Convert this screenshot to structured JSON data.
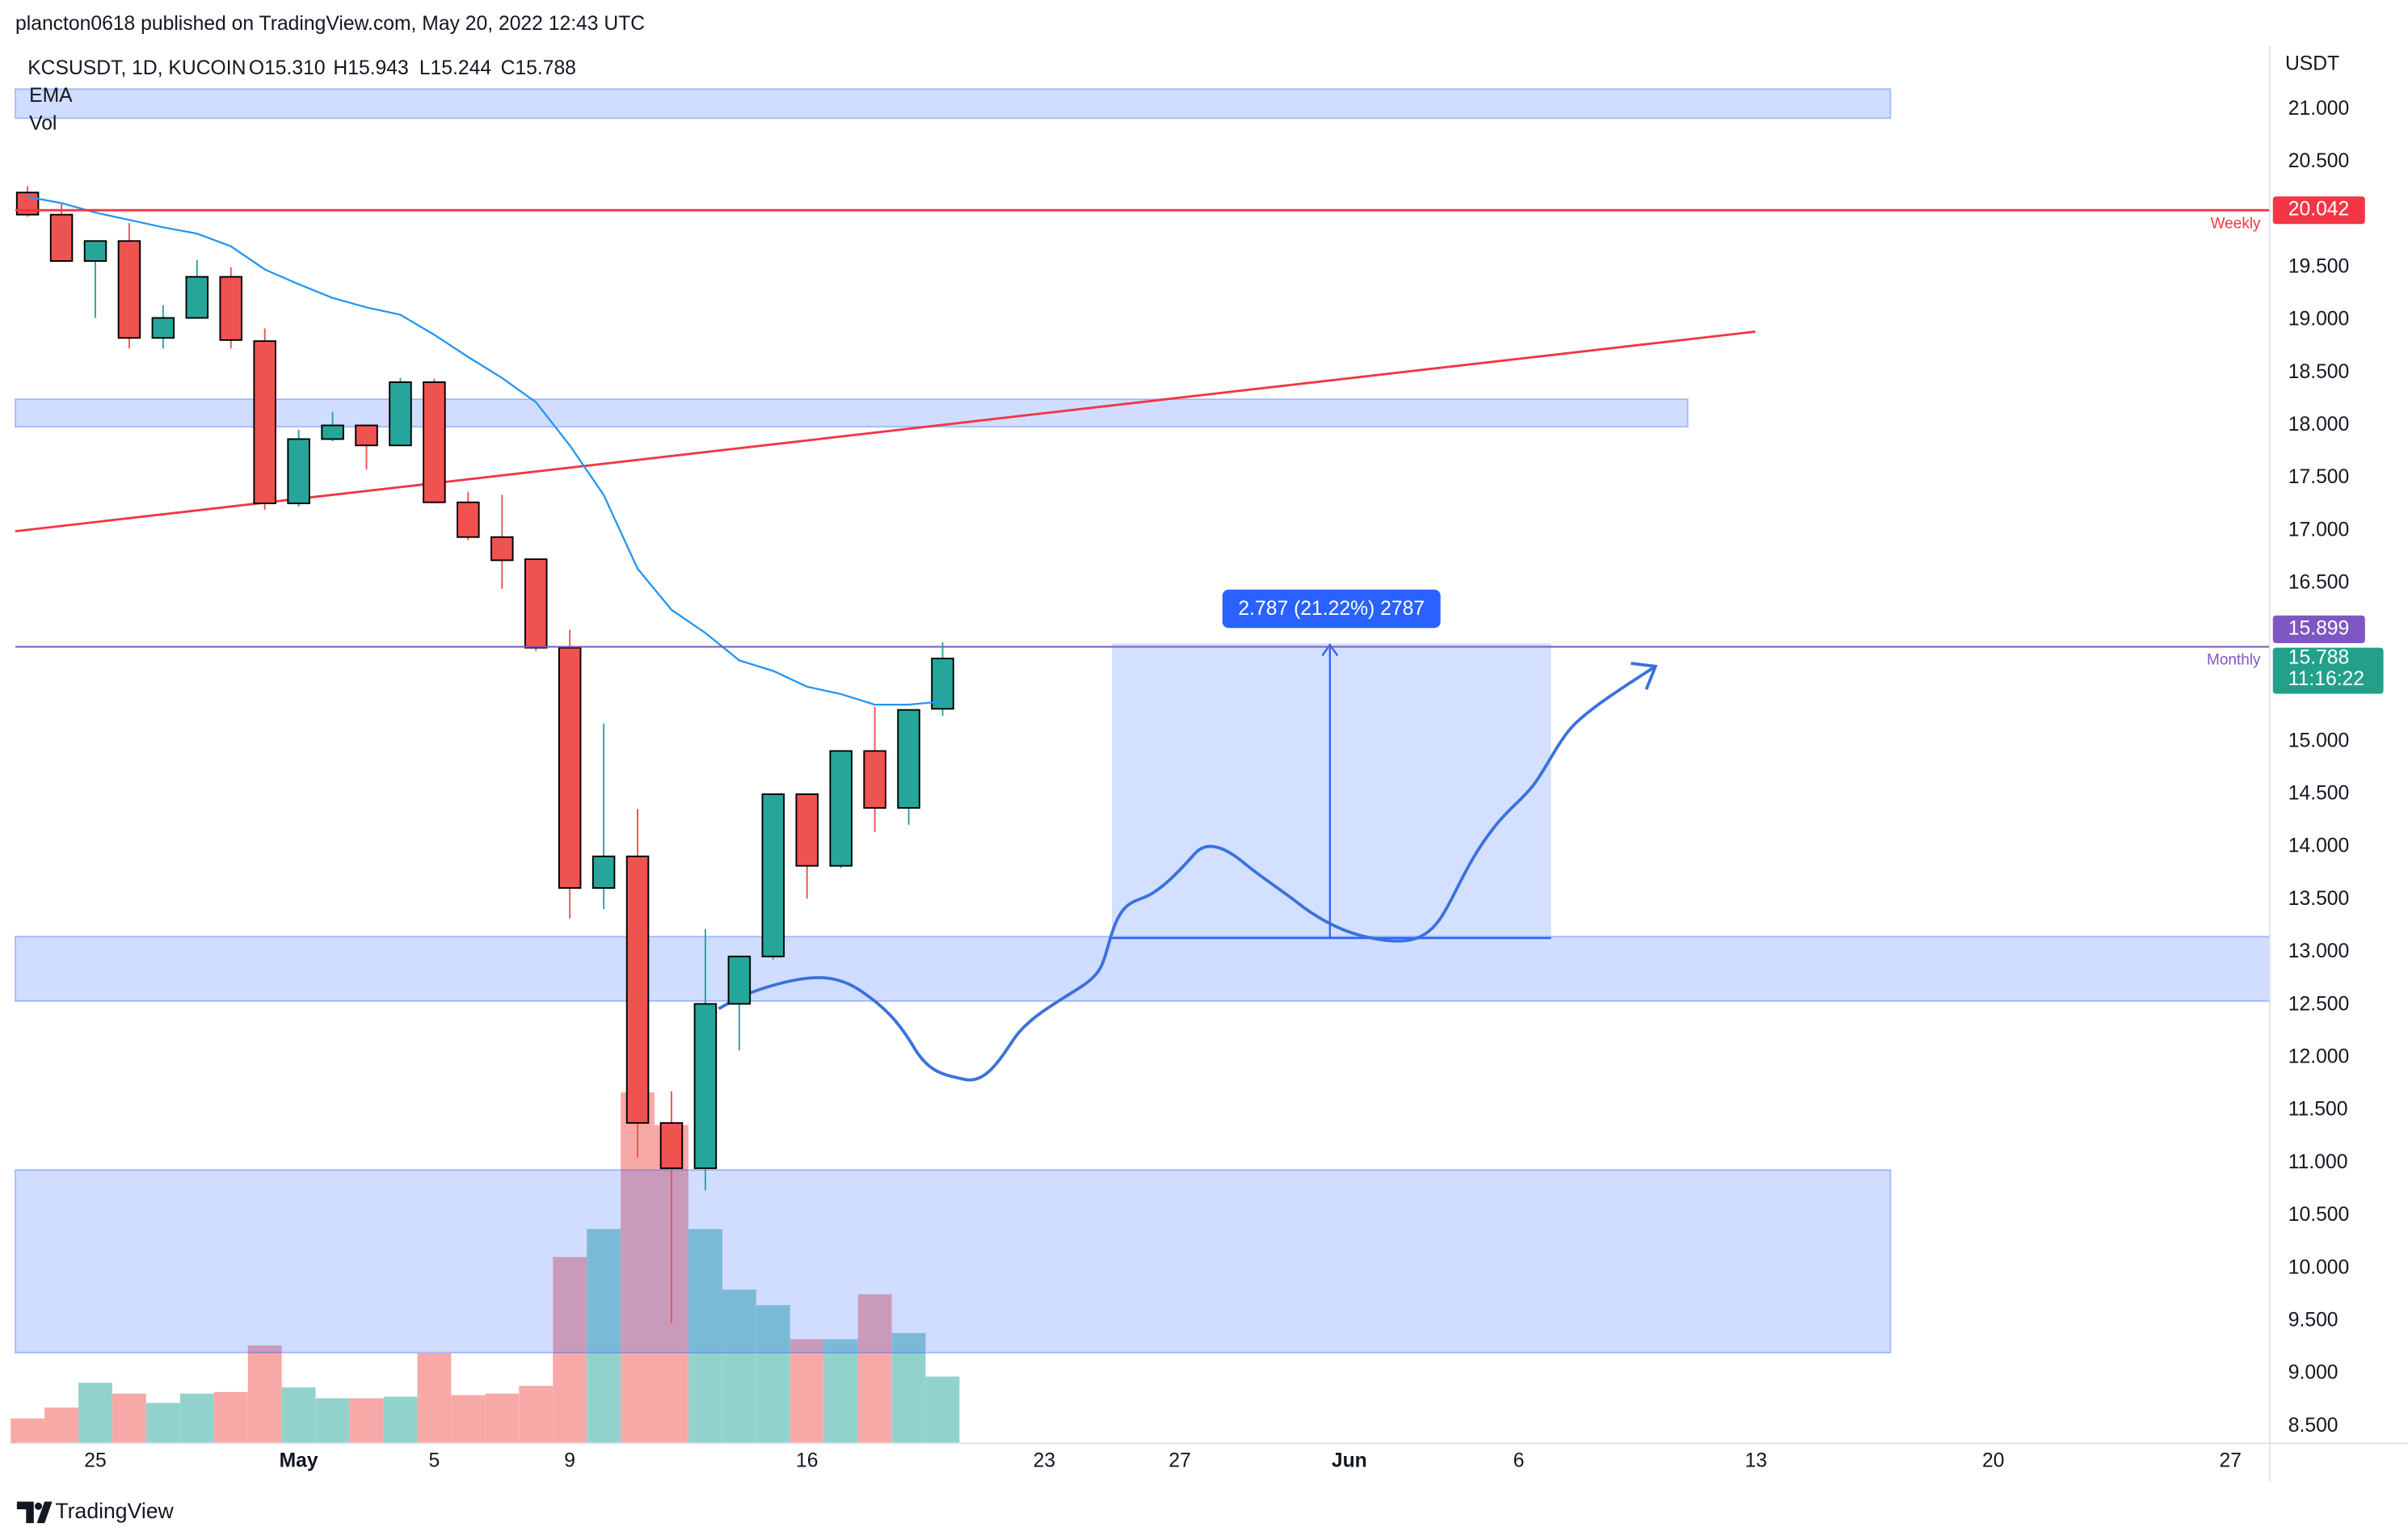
{
  "header": {
    "published": "plancton0618 published on TradingView.com, May 20, 2022 12:43 UTC"
  },
  "chart_data": {
    "type": "candlestick",
    "symbol": "KCSUSDT, 1D, KUCOIN",
    "ohlc_labels": [
      "O15.310",
      "H15.943",
      "L15.244",
      "C15.788"
    ],
    "y_axis_label": "USDT",
    "x": [
      23,
      24,
      25,
      26,
      27,
      28,
      29,
      30,
      31,
      32,
      33,
      34,
      35,
      36,
      37,
      38,
      39,
      40,
      41,
      42,
      43,
      44,
      45,
      46,
      47,
      48,
      49,
      50
    ],
    "open": [
      20.21,
      20.0,
      19.56,
      19.75,
      18.83,
      19.02,
      19.41,
      18.8,
      17.26,
      17.87,
      18.0,
      17.81,
      18.41,
      17.27,
      16.94,
      16.73,
      15.89,
      13.61,
      13.91,
      11.38,
      10.95,
      12.51,
      12.96,
      14.5,
      13.82,
      14.91,
      14.37,
      15.31
    ],
    "high": [
      20.27,
      20.1,
      19.75,
      19.92,
      19.14,
      19.57,
      19.5,
      18.92,
      17.96,
      18.13,
      18.0,
      18.45,
      18.44,
      17.37,
      17.34,
      16.73,
      16.06,
      15.17,
      14.36,
      11.68,
      13.22,
      12.96,
      14.5,
      14.5,
      14.91,
      15.33,
      15.3,
      15.943
    ],
    "low": [
      19.98,
      19.55,
      19.02,
      18.73,
      18.73,
      19.01,
      18.73,
      17.2,
      17.23,
      17.85,
      17.58,
      17.8,
      17.26,
      16.91,
      16.45,
      15.86,
      13.32,
      13.41,
      11.05,
      9.48,
      10.74,
      12.07,
      12.93,
      13.51,
      13.8,
      14.14,
      14.21,
      15.244
    ],
    "close": [
      20.0,
      19.56,
      19.75,
      18.83,
      19.02,
      19.41,
      18.81,
      17.26,
      17.87,
      18.0,
      17.81,
      18.41,
      17.27,
      16.94,
      16.72,
      15.89,
      13.61,
      13.91,
      11.38,
      10.95,
      12.51,
      12.96,
      14.5,
      13.82,
      14.91,
      14.37,
      15.3,
      15.788
    ],
    "up_color": "#26a69a",
    "down_color": "#ef5350",
    "series": [
      {
        "name": "EMA",
        "color": "#2196f3",
        "values": [
          20.17,
          20.11,
          20.02,
          19.95,
          19.88,
          19.82,
          19.7,
          19.48,
          19.34,
          19.21,
          19.12,
          19.05,
          18.86,
          18.65,
          18.45,
          18.22,
          17.81,
          17.34,
          16.64,
          16.25,
          16.03,
          15.77,
          15.67,
          15.52,
          15.45,
          15.35,
          15.35,
          15.38
        ]
      },
      {
        "name": "Vol",
        "values": [
          16,
          23,
          39,
          32,
          26,
          32,
          33,
          63,
          36,
          29,
          29,
          30,
          58,
          31,
          32,
          37,
          120,
          138,
          226,
          205,
          138,
          99,
          89,
          67,
          67,
          96,
          71,
          43
        ]
      }
    ],
    "vlim": [
      0,
      900
    ],
    "xlim": [
      22.64,
      89.16
    ],
    "xticks": [
      25,
      {
        "value": 31,
        "label": "May"
      },
      {
        "value": 35,
        "label": "5"
      },
      {
        "value": 39,
        "label": "9"
      },
      {
        "value": 46,
        "label": "16"
      },
      {
        "value": 53,
        "label": "23"
      },
      {
        "value": 57,
        "label": "27"
      },
      {
        "value": 62,
        "label": "Jun"
      },
      {
        "value": 67,
        "label": "6"
      },
      {
        "value": 74,
        "label": "13"
      },
      {
        "value": 81,
        "label": "20"
      },
      {
        "value": 88,
        "label": "27"
      }
    ],
    "ylim": [
      8.34,
      21.6
    ],
    "yticks": [
      {
        "value": 21,
        "label": "21.000"
      },
      {
        "value": 20.5,
        "label": "20.500"
      },
      {
        "value": 19.5,
        "label": "19.500"
      },
      {
        "value": 19,
        "label": "19.000"
      },
      {
        "value": 18.5,
        "label": "18.500"
      },
      {
        "value": 18,
        "label": "18.000"
      },
      {
        "value": 17.5,
        "label": "17.500"
      },
      {
        "value": 17,
        "label": "17.000"
      },
      {
        "value": 16.5,
        "label": "16.500"
      },
      {
        "value": 15,
        "label": "15.000"
      },
      {
        "value": 14.5,
        "label": "14.500"
      },
      {
        "value": 14,
        "label": "14.000"
      },
      {
        "value": 13.5,
        "label": "13.500"
      },
      {
        "value": 13,
        "label": "13.000"
      },
      {
        "value": 12.5,
        "label": "12.500"
      },
      {
        "value": 12,
        "label": "12.000"
      },
      {
        "value": 11.5,
        "label": "11.500"
      },
      {
        "value": 11,
        "label": "11.000"
      },
      {
        "value": 10.5,
        "label": "10.500"
      },
      {
        "value": 10,
        "label": "10.000"
      },
      {
        "value": 9.5,
        "label": "9.500"
      },
      {
        "value": 9,
        "label": "9.000"
      },
      {
        "value": 8.5,
        "label": "8.500"
      }
    ],
    "price_lines": [
      {
        "value": 20.042,
        "label": "20.042",
        "note": "Weekly",
        "color": "#f23645"
      },
      {
        "value": 15.899,
        "label": "15.899",
        "note": "Monthly",
        "color": "#7e57c2"
      }
    ],
    "last_price": {
      "value": 15.788,
      "label": "15.788",
      "countdown": "11:16:22",
      "color": "#22a08a"
    },
    "measure_label": "2.787 (21.22%) 2787"
  },
  "footer": {
    "brand": "TradingView"
  }
}
